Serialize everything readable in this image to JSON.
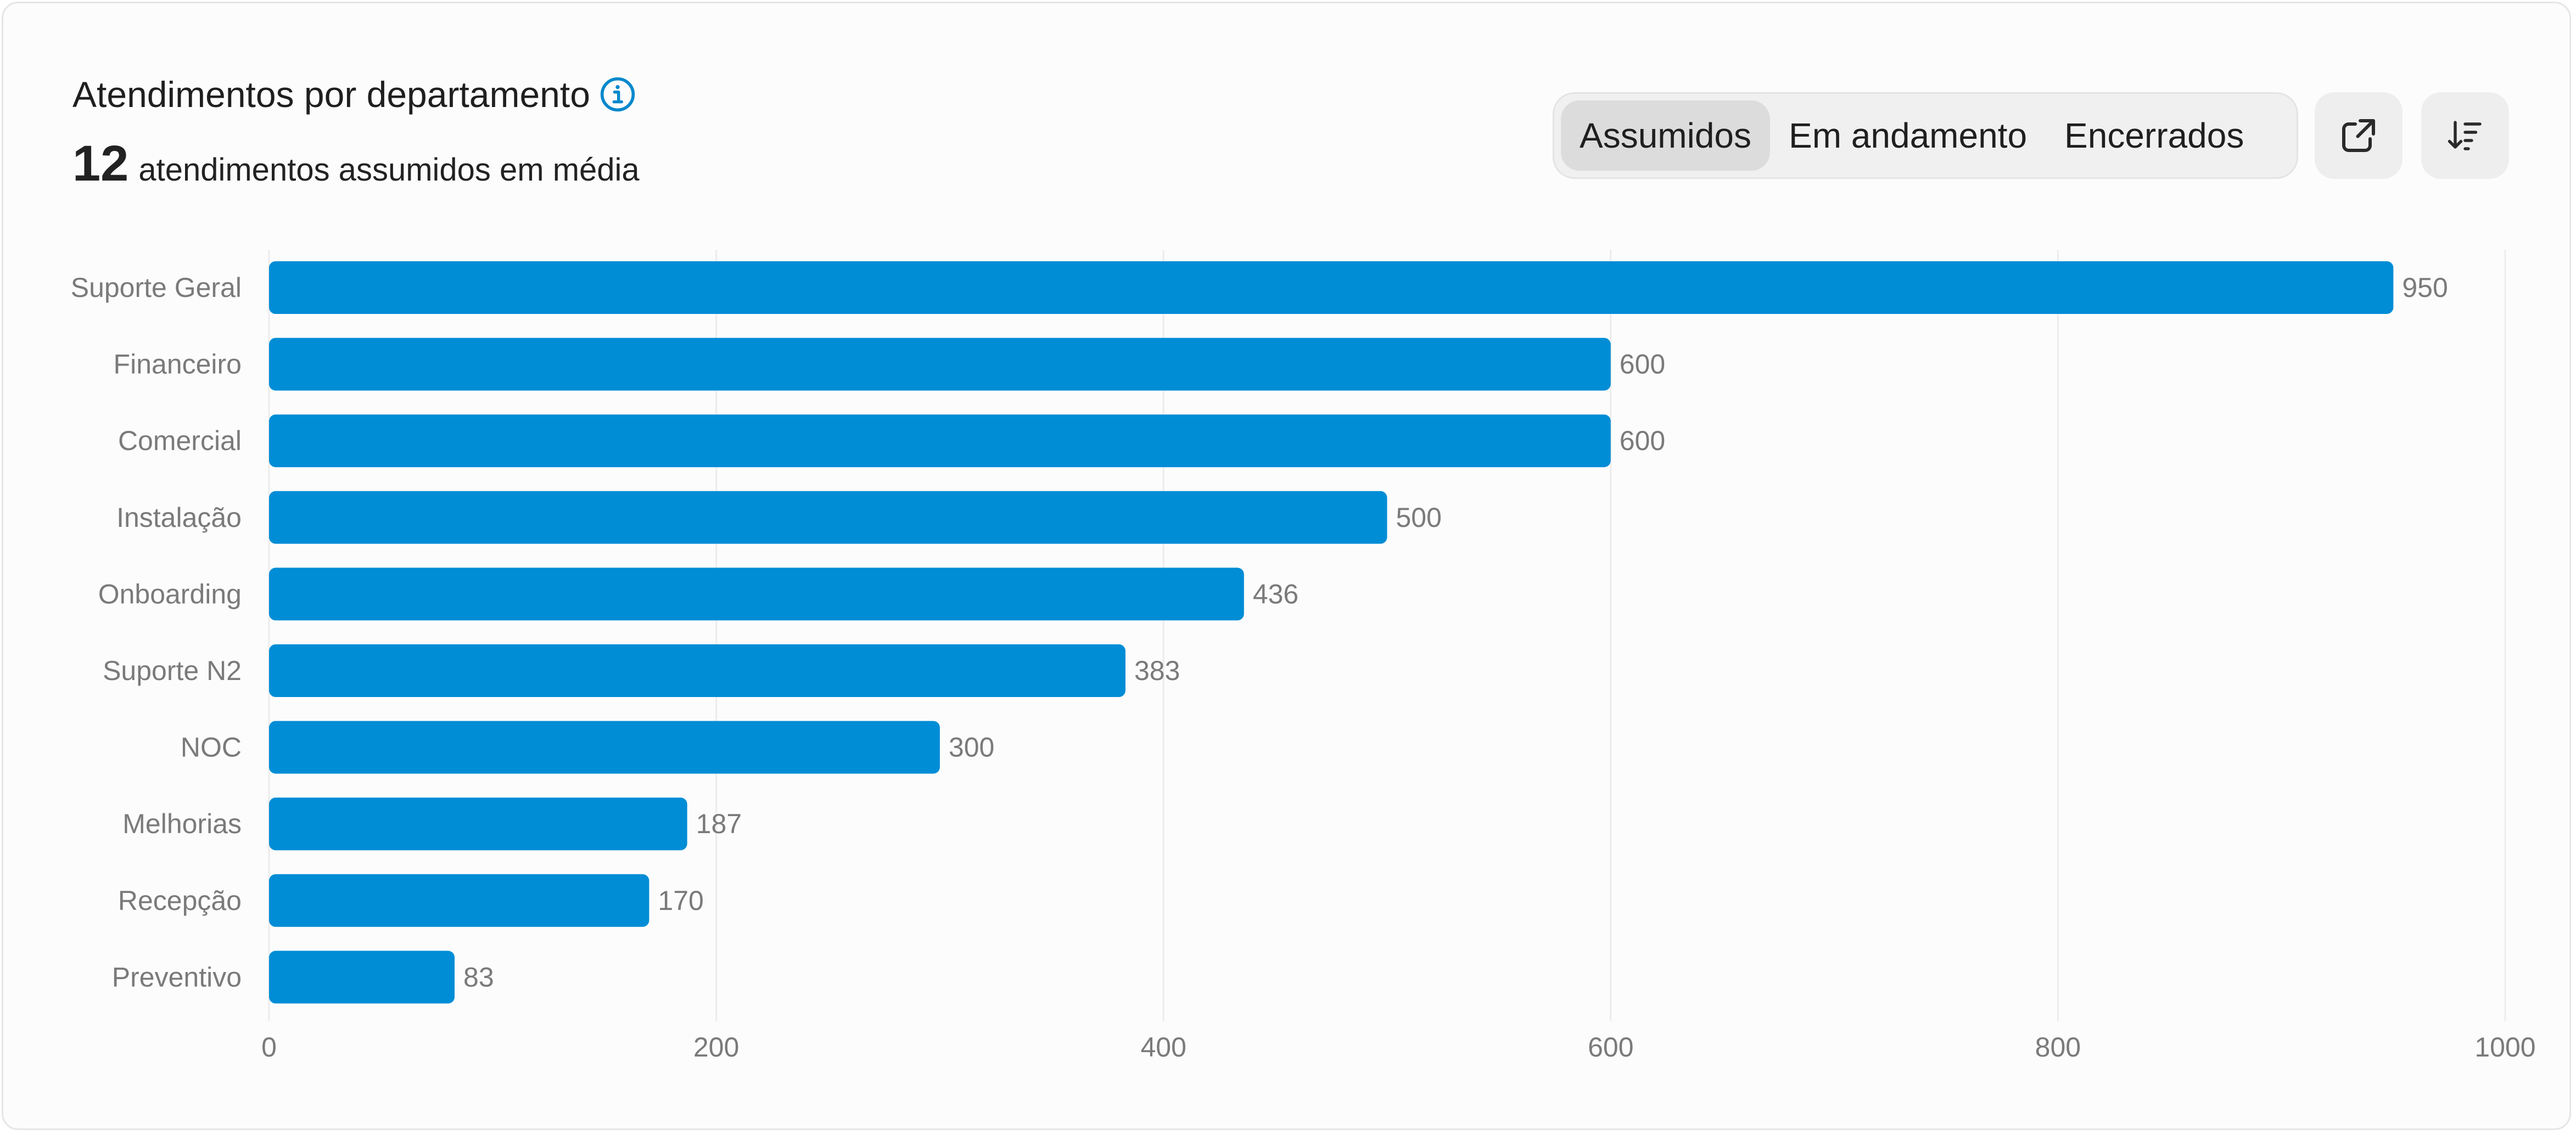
{
  "header": {
    "title": "Atendimentos por departamento",
    "avg_value": "12",
    "avg_label": "atendimentos assumidos em média"
  },
  "tabs": [
    {
      "label": "Assumidos",
      "active": true
    },
    {
      "label": "Em andamento",
      "active": false
    },
    {
      "label": "Encerrados",
      "active": false
    }
  ],
  "toolbar": {
    "export_icon": "external-link-icon",
    "sort_icon": "sort-descending-icon"
  },
  "colors": {
    "bar": "#008dd6",
    "accent": "#0088cc"
  },
  "chart_data": {
    "type": "bar",
    "orientation": "horizontal",
    "categories": [
      "Suporte Geral",
      "Financeiro",
      "Comercial",
      "Instalação",
      "Onboarding",
      "Suporte N2",
      "NOC",
      "Melhorias",
      "Recepção",
      "Preventivo"
    ],
    "values": [
      950,
      600,
      600,
      500,
      436,
      383,
      300,
      187,
      170,
      83
    ],
    "xlim": [
      0,
      1000
    ],
    "xticks": [
      0,
      200,
      400,
      600,
      800,
      1000
    ],
    "grid": true
  }
}
